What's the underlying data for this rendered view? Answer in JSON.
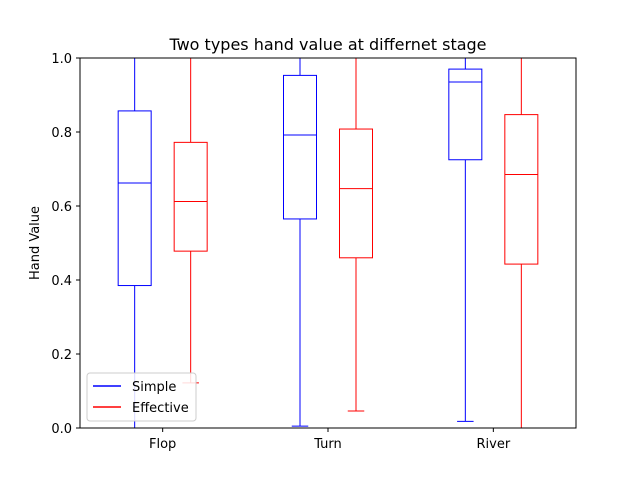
{
  "chart_data": {
    "type": "boxplot",
    "title": "Two types hand value at differnet stage",
    "xlabel": "",
    "ylabel": "Hand Value",
    "ylim": [
      0,
      1.0
    ],
    "yticks": [
      0.0,
      0.2,
      0.4,
      0.6,
      0.8,
      1.0
    ],
    "ytick_labels": [
      "0.0",
      "0.2",
      "0.4",
      "0.6",
      "0.8",
      "1.0"
    ],
    "categories": [
      "Flop",
      "Turn",
      "River"
    ],
    "legend": {
      "position": "lower-left"
    },
    "series": [
      {
        "name": "Simple",
        "color": "#0000ff",
        "boxes": [
          {
            "whisker_low": 0.0,
            "q1": 0.385,
            "median": 0.662,
            "q3": 0.857,
            "whisker_high": 1.0
          },
          {
            "whisker_low": 0.005,
            "q1": 0.565,
            "median": 0.792,
            "q3": 0.953,
            "whisker_high": 1.0
          },
          {
            "whisker_low": 0.018,
            "q1": 0.725,
            "median": 0.935,
            "q3": 0.97,
            "whisker_high": 1.0
          }
        ]
      },
      {
        "name": "Effective",
        "color": "#ff0000",
        "boxes": [
          {
            "whisker_low": 0.122,
            "q1": 0.478,
            "median": 0.612,
            "q3": 0.772,
            "whisker_high": 1.0
          },
          {
            "whisker_low": 0.046,
            "q1": 0.46,
            "median": 0.647,
            "q3": 0.808,
            "whisker_high": 1.0
          },
          {
            "whisker_low": 0.0,
            "q1": 0.443,
            "median": 0.685,
            "q3": 0.847,
            "whisker_high": 1.0
          }
        ]
      }
    ]
  }
}
